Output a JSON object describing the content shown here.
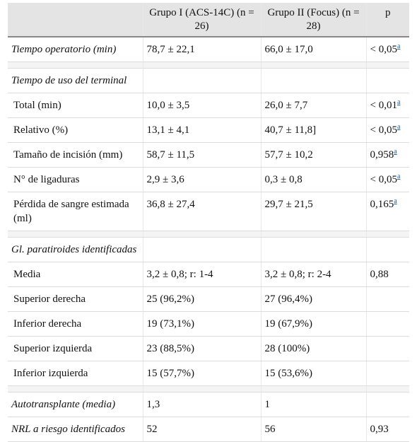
{
  "headers": [
    "",
    "Grupo I (ACS-14C) (n = 26)",
    "Grupo II (Focus) (n = 28)",
    "p"
  ],
  "rows": [
    {
      "kind": "row",
      "italic": true,
      "indent": false,
      "label": "Tiempo operatorio (min)",
      "g1": "78,7 ± 22,1",
      "g2": "66,0 ± 17,0",
      "p": "< 0,05",
      "sup": "a"
    },
    {
      "kind": "spacer"
    },
    {
      "kind": "row",
      "italic": true,
      "indent": false,
      "label": "Tiempo de uso del terminal",
      "g1": "",
      "g2": "",
      "p": "",
      "sup": ""
    },
    {
      "kind": "row",
      "italic": false,
      "indent": true,
      "label": "Total (min)",
      "g1": "10,0 ± 3,5",
      "g2": "26,0 ± 7,7",
      "p": "< 0,01",
      "sup": "a"
    },
    {
      "kind": "row",
      "italic": false,
      "indent": true,
      "label": "Relativo (%)",
      "g1": "13,1 ± 4,1",
      "g2": "40,7 ± 11,8]",
      "p": "< 0,05",
      "sup": "a"
    },
    {
      "kind": "row",
      "italic": false,
      "indent": true,
      "label": "Tamaño de incisión (mm)",
      "g1": "58,7 ± 11,5",
      "g2": "57,7 ± 10,2",
      "p": "0,958",
      "sup": "a"
    },
    {
      "kind": "row",
      "italic": false,
      "indent": true,
      "label": "N° de ligaduras",
      "g1": "2,9 ± 3,6",
      "g2": "0,3 ± 0,8",
      "p": "< 0,05",
      "sup": "a"
    },
    {
      "kind": "row",
      "italic": false,
      "indent": true,
      "label": "Pérdida de sangre estimada (ml)",
      "g1": "36,8 ± 27,4",
      "g2": "29,7 ± 21,5",
      "p": "0,165",
      "sup": "a"
    },
    {
      "kind": "spacer"
    },
    {
      "kind": "row",
      "italic": true,
      "indent": false,
      "label": "Gl. paratiroides identificadas",
      "g1": "",
      "g2": "",
      "p": "",
      "sup": ""
    },
    {
      "kind": "row",
      "italic": false,
      "indent": true,
      "label": "Media",
      "g1": "3,2 ± 0,8; r: 1-4",
      "g2": "3,2 ± 0,8; r: 2-4",
      "p": "0,88",
      "sup": ""
    },
    {
      "kind": "row",
      "italic": false,
      "indent": true,
      "label": "Superior derecha",
      "g1": "25 (96,2%)",
      "g2": "27 (96,4%)",
      "p": "",
      "sup": ""
    },
    {
      "kind": "row",
      "italic": false,
      "indent": true,
      "label": "Inferior derecha",
      "g1": "19 (73,1%)",
      "g2": "19 (67,9%)",
      "p": "",
      "sup": ""
    },
    {
      "kind": "row",
      "italic": false,
      "indent": true,
      "label": "Superior izquierda",
      "g1": "23 (88,5%)",
      "g2": "28 (100%)",
      "p": "",
      "sup": ""
    },
    {
      "kind": "row",
      "italic": false,
      "indent": true,
      "label": "Inferior izquierda",
      "g1": "15 (57,7%)",
      "g2": "15 (53,6%)",
      "p": "",
      "sup": ""
    },
    {
      "kind": "spacer"
    },
    {
      "kind": "row",
      "italic": true,
      "indent": false,
      "label": "Autotransplante (media)",
      "g1": "1,3",
      "g2": "1",
      "p": "",
      "sup": ""
    },
    {
      "kind": "row",
      "italic": true,
      "indent": false,
      "label": "NRL a riesgo identificados",
      "g1": "52",
      "g2": "56",
      "p": "0,93",
      "sup": ""
    }
  ]
}
